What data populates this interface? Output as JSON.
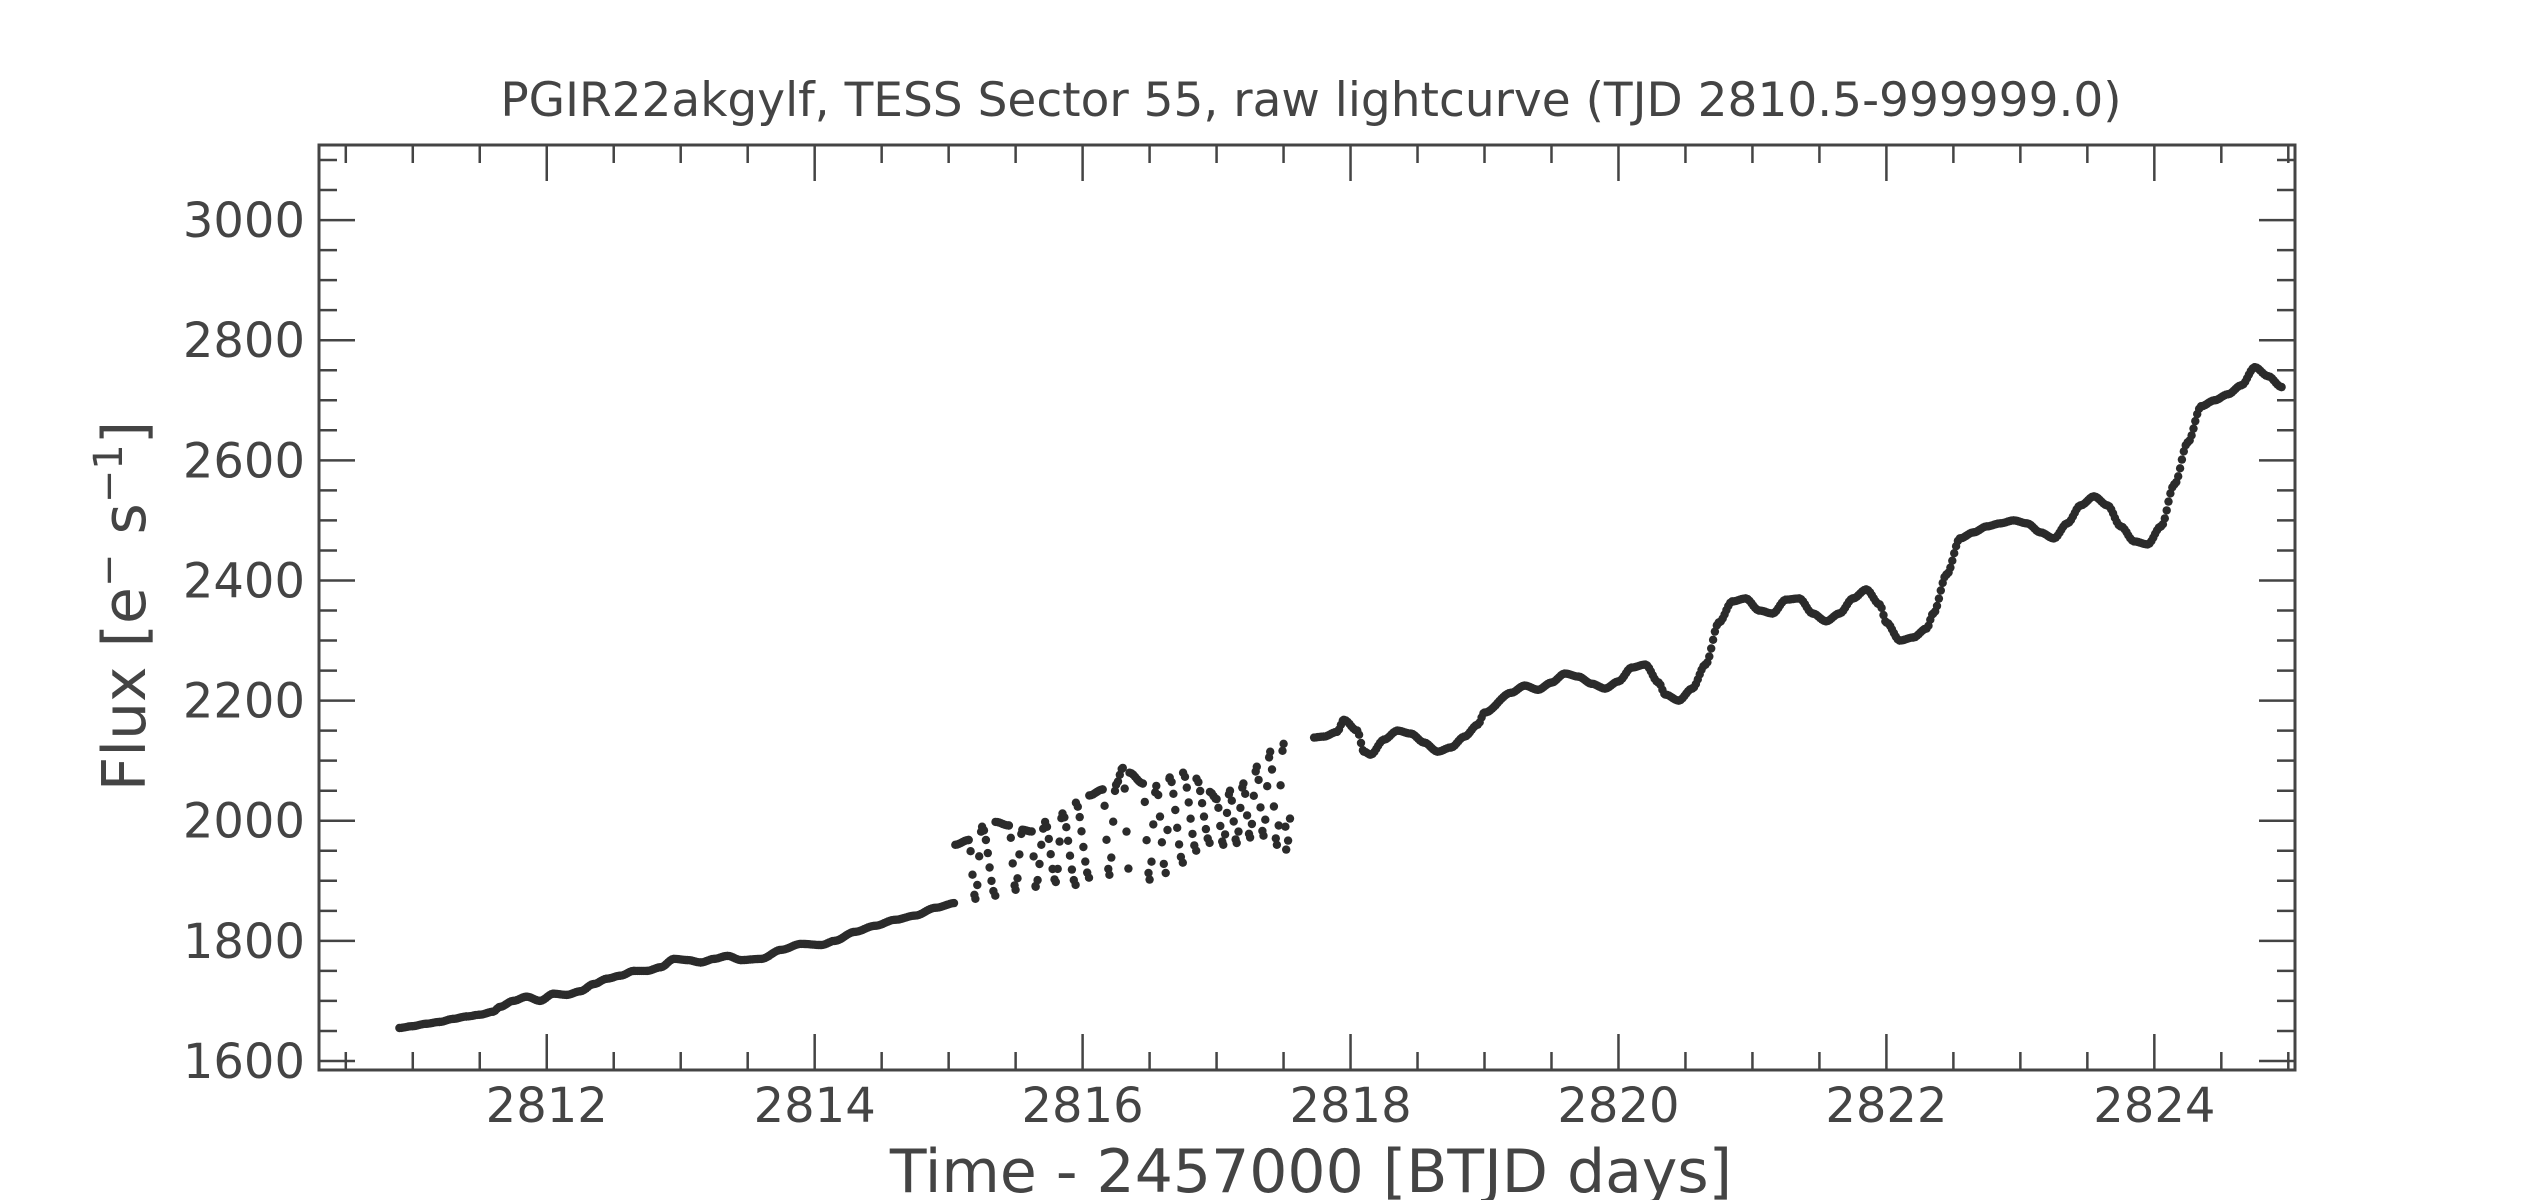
{
  "chart_data": {
    "type": "scatter",
    "title": "PGIR22akgylf, TESS Sector 55, raw lightcurve (TJD 2810.5-999999.0)",
    "xlabel": "Time - 2457000 [BTJD days]",
    "ylabel_main": "Flux [e",
    "ylabel_sup1": "−",
    "ylabel_mid": " s",
    "ylabel_sup2": "−1",
    "ylabel_end": "]",
    "xlim": [
      2810.3,
      2825.05
    ],
    "ylim": [
      1585,
      3125
    ],
    "x_major_ticks": [
      2812,
      2814,
      2816,
      2818,
      2820,
      2822,
      2824
    ],
    "x_minor_step": 0.5,
    "y_major_ticks": [
      1600,
      1800,
      2000,
      2200,
      2400,
      2600,
      2800,
      3000
    ],
    "y_minor_step": 50,
    "grid": false,
    "marker_color": "#2b2b2b",
    "axis_color": "#444444",
    "series": [
      {
        "gaps": [
          [
            2817.55,
            2817.72
          ]
        ],
        "points": [
          [
            2810.9,
            1655
          ],
          [
            2811.0,
            1658
          ],
          [
            2811.1,
            1662
          ],
          [
            2811.2,
            1665
          ],
          [
            2811.3,
            1670
          ],
          [
            2811.4,
            1674
          ],
          [
            2811.5,
            1677
          ],
          [
            2811.6,
            1682
          ],
          [
            2811.65,
            1690
          ],
          [
            2811.75,
            1700
          ],
          [
            2811.85,
            1707
          ],
          [
            2811.95,
            1700
          ],
          [
            2812.05,
            1712
          ],
          [
            2812.15,
            1710
          ],
          [
            2812.25,
            1716
          ],
          [
            2812.35,
            1728
          ],
          [
            2812.45,
            1737
          ],
          [
            2812.55,
            1742
          ],
          [
            2812.65,
            1750
          ],
          [
            2812.75,
            1750
          ],
          [
            2812.85,
            1756
          ],
          [
            2812.95,
            1770
          ],
          [
            2813.05,
            1768
          ],
          [
            2813.15,
            1764
          ],
          [
            2813.25,
            1770
          ],
          [
            2813.35,
            1775
          ],
          [
            2813.45,
            1768
          ],
          [
            2813.6,
            1770
          ],
          [
            2813.75,
            1785
          ],
          [
            2813.9,
            1795
          ],
          [
            2814.05,
            1793
          ],
          [
            2814.15,
            1800
          ],
          [
            2814.3,
            1815
          ],
          [
            2814.45,
            1825
          ],
          [
            2814.6,
            1835
          ],
          [
            2814.75,
            1842
          ],
          [
            2814.9,
            1855
          ],
          [
            2815.05,
            1863
          ],
          [
            2815.2,
            1870
          ],
          [
            2815.35,
            1875
          ],
          [
            2815.5,
            1885
          ],
          [
            2815.65,
            1890
          ],
          [
            2815.8,
            1898
          ],
          [
            2815.95,
            1893
          ],
          [
            2816.05,
            1905
          ],
          [
            2816.2,
            1910
          ],
          [
            2816.35,
            1908
          ],
          [
            2816.5,
            1902
          ],
          [
            2816.62,
            1913
          ],
          [
            2816.75,
            1930
          ],
          [
            2816.85,
            1950
          ],
          [
            2816.95,
            1963
          ],
          [
            2817.05,
            1960
          ],
          [
            2817.15,
            1963
          ],
          [
            2817.25,
            1972
          ],
          [
            2817.35,
            1975
          ],
          [
            2817.45,
            1960
          ],
          [
            2817.52,
            1952
          ],
          [
            2815.05,
            1960
          ],
          [
            2815.15,
            1968
          ],
          [
            2815.25,
            1990
          ],
          [
            2815.35,
            1998
          ],
          [
            2815.45,
            1992
          ],
          [
            2815.55,
            1985
          ],
          [
            2815.62,
            1982
          ],
          [
            2815.72,
            1998
          ],
          [
            2815.85,
            2012
          ],
          [
            2815.95,
            2030
          ],
          [
            2816.05,
            2042
          ],
          [
            2816.15,
            2052
          ],
          [
            2816.25,
            2060
          ],
          [
            2816.3,
            2088
          ],
          [
            2816.35,
            2080
          ],
          [
            2816.45,
            2062
          ],
          [
            2816.55,
            2058
          ],
          [
            2816.65,
            2072
          ],
          [
            2816.75,
            2080
          ],
          [
            2816.85,
            2070
          ],
          [
            2816.95,
            2048
          ],
          [
            2817.0,
            2036
          ],
          [
            2817.1,
            2050
          ],
          [
            2817.2,
            2062
          ],
          [
            2817.3,
            2090
          ],
          [
            2817.4,
            2115
          ],
          [
            2817.5,
            2128
          ],
          [
            2817.6,
            2135
          ],
          [
            2817.7,
            2138
          ],
          [
            2817.8,
            2140
          ],
          [
            2817.9,
            2148
          ],
          [
            2817.95,
            2168
          ],
          [
            2818.05,
            2150
          ],
          [
            2818.1,
            2115
          ],
          [
            2818.15,
            2110
          ],
          [
            2818.25,
            2135
          ],
          [
            2818.35,
            2150
          ],
          [
            2818.45,
            2145
          ],
          [
            2818.55,
            2130
          ],
          [
            2818.65,
            2115
          ],
          [
            2818.75,
            2122
          ],
          [
            2818.85,
            2140
          ],
          [
            2818.95,
            2160
          ],
          [
            2819.0,
            2180
          ],
          [
            2819.2,
            2213
          ],
          [
            2819.3,
            2225
          ],
          [
            2819.4,
            2218
          ],
          [
            2819.5,
            2230
          ],
          [
            2819.6,
            2245
          ],
          [
            2819.7,
            2240
          ],
          [
            2819.8,
            2228
          ],
          [
            2819.9,
            2220
          ],
          [
            2820.0,
            2232
          ],
          [
            2820.1,
            2255
          ],
          [
            2820.2,
            2260
          ],
          [
            2820.3,
            2230
          ],
          [
            2820.35,
            2210
          ],
          [
            2820.45,
            2200
          ],
          [
            2820.55,
            2220
          ],
          [
            2820.65,
            2260
          ],
          [
            2820.75,
            2330
          ],
          [
            2820.85,
            2365
          ],
          [
            2820.95,
            2370
          ],
          [
            2821.05,
            2350
          ],
          [
            2821.15,
            2345
          ],
          [
            2821.25,
            2368
          ],
          [
            2821.35,
            2370
          ],
          [
            2821.45,
            2345
          ],
          [
            2821.55,
            2332
          ],
          [
            2821.65,
            2345
          ],
          [
            2821.75,
            2370
          ],
          [
            2821.85,
            2385
          ],
          [
            2821.95,
            2360
          ],
          [
            2822.0,
            2330
          ],
          [
            2822.1,
            2300
          ],
          [
            2822.2,
            2305
          ],
          [
            2822.3,
            2320
          ],
          [
            2822.35,
            2345
          ],
          [
            2822.45,
            2410
          ],
          [
            2822.55,
            2470
          ],
          [
            2822.65,
            2480
          ],
          [
            2822.75,
            2490
          ],
          [
            2822.85,
            2495
          ],
          [
            2822.95,
            2500
          ],
          [
            2823.05,
            2495
          ],
          [
            2823.15,
            2480
          ],
          [
            2823.25,
            2470
          ],
          [
            2823.35,
            2495
          ],
          [
            2823.45,
            2525
          ],
          [
            2823.55,
            2540
          ],
          [
            2823.65,
            2525
          ],
          [
            2823.75,
            2490
          ],
          [
            2823.85,
            2465
          ],
          [
            2823.95,
            2460
          ],
          [
            2824.05,
            2490
          ],
          [
            2824.15,
            2560
          ],
          [
            2824.25,
            2630
          ],
          [
            2824.35,
            2690
          ],
          [
            2824.45,
            2700
          ],
          [
            2824.55,
            2710
          ],
          [
            2824.65,
            2725
          ],
          [
            2824.75,
            2755
          ],
          [
            2824.85,
            2740
          ],
          [
            2824.95,
            2722
          ]
        ]
      }
    ]
  }
}
